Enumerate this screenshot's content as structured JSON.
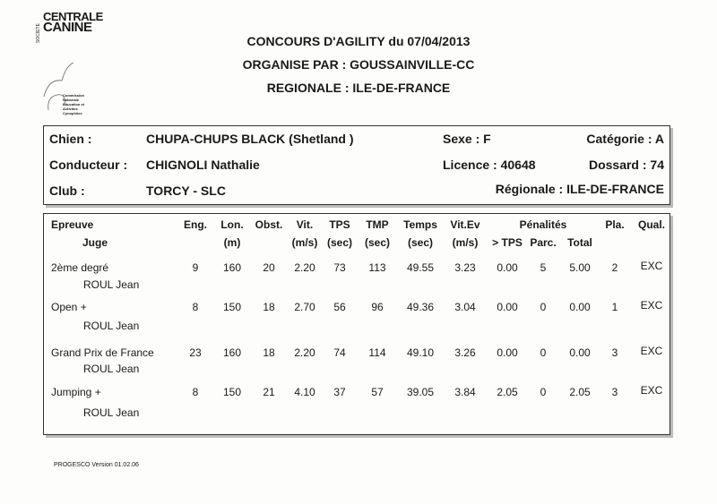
{
  "header": {
    "line1": "CONCOURS D'AGILITY du 07/04/2013",
    "line2": "ORGANISE PAR : GOUSSAINVILLE-CC",
    "line3": "REGIONALE : ILE-DE-FRANCE"
  },
  "logo": {
    "vertical": "SOCIETE",
    "top": "CENTRALE",
    "bottom": "CANINE",
    "caption": [
      "Commission",
      "Nationale",
      "Education et",
      "Activites",
      "Cynophiles"
    ]
  },
  "info": {
    "chien_label": "Chien :",
    "chien": "CHUPA-CHUPS BLACK (Shetland )",
    "sexe": "Sexe : F",
    "categorie": "Catégorie : A",
    "conducteur_label": "Conducteur :",
    "conducteur": "CHIGNOLI Nathalie",
    "licence": "Licence : 40648",
    "dossard": "Dossard : 74",
    "club_label": "Club :",
    "club": "TORCY - SLC",
    "regionale": "Régionale : ILE-DE-FRANCE"
  },
  "table": {
    "headers": {
      "epreuve": "Epreuve",
      "juge": "Juge",
      "eng": "Eng.",
      "lon": "Lon.",
      "lon_unit": "(m)",
      "obst": "Obst.",
      "vit": "Vit.",
      "vit_unit": "(m/s)",
      "tps": "TPS",
      "tps_unit": "(sec)",
      "tmp": "TMP",
      "tmp_unit": "(sec)",
      "temps": "Temps",
      "temps_unit": "(sec)",
      "vitev": "Vit.Ev",
      "vitev_unit": "(m/s)",
      "penalites": "Pénalités",
      "pen_tps": "> TPS",
      "pen_parc": "Parc.",
      "pen_total": "Total",
      "pla": "Pla.",
      "qual": "Qual."
    },
    "rows": [
      {
        "epreuve": "2ème degré",
        "juge": "ROUL Jean",
        "eng": "9",
        "lon": "160",
        "obst": "20",
        "vit": "2.20",
        "tps": "73",
        "tmp": "113",
        "temps": "49.55",
        "vitev": "3.23",
        "pen_tps": "0.00",
        "pen_parc": "5",
        "pen_total": "5.00",
        "pla": "2",
        "qual": "EXC"
      },
      {
        "epreuve": "Open +",
        "juge": "ROUL Jean",
        "eng": "8",
        "lon": "150",
        "obst": "18",
        "vit": "2.70",
        "tps": "56",
        "tmp": "96",
        "temps": "49.36",
        "vitev": "3.04",
        "pen_tps": "0.00",
        "pen_parc": "0",
        "pen_total": "0.00",
        "pla": "1",
        "qual": "EXC"
      },
      {
        "epreuve": "Grand Prix de France",
        "juge": "ROUL Jean",
        "eng": "23",
        "lon": "160",
        "obst": "18",
        "vit": "2.20",
        "tps": "74",
        "tmp": "114",
        "temps": "49.10",
        "vitev": "3.26",
        "pen_tps": "0.00",
        "pen_parc": "0",
        "pen_total": "0.00",
        "pla": "3",
        "qual": "EXC"
      },
      {
        "epreuve": "Jumping +",
        "juge": "ROUL Jean",
        "eng": "8",
        "lon": "150",
        "obst": "21",
        "vit": "4.10",
        "tps": "37",
        "tmp": "57",
        "temps": "39.05",
        "vitev": "3.84",
        "pen_tps": "2.05",
        "pen_parc": "0",
        "pen_total": "2.05",
        "pla": "3",
        "qual": "EXC"
      }
    ]
  },
  "footer": "PROGESCO Version 01.02.06"
}
